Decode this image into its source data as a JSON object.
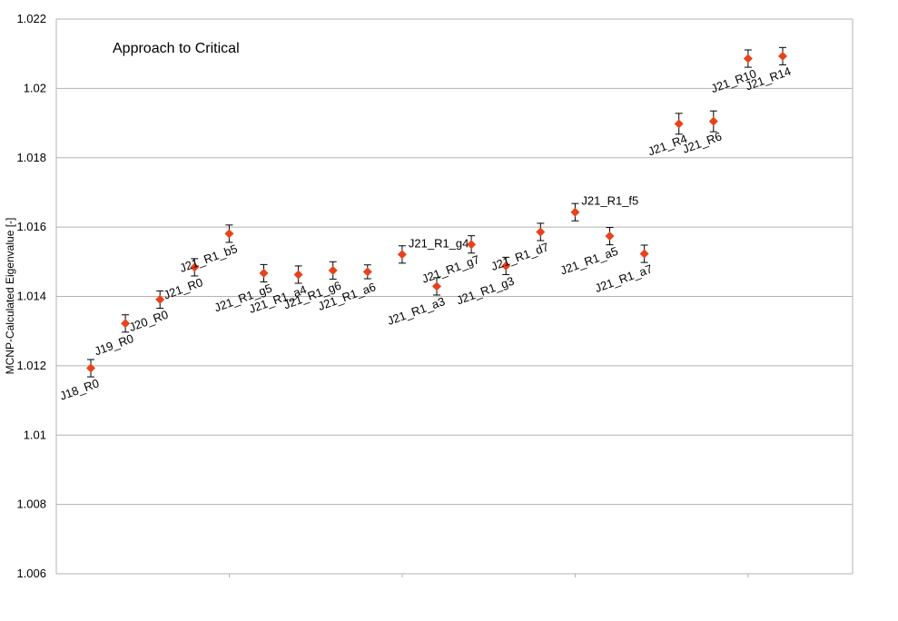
{
  "chart_data": {
    "type": "scatter",
    "title": "Approach to Critical",
    "ylabel": "MCNP-Calculated Eigenvalue [-]",
    "xlabel": "",
    "ylim": [
      1.006,
      1.022
    ],
    "yticks": [
      "1.006",
      "1.008",
      "1.01",
      "1.012",
      "1.014",
      "1.016",
      "1.018",
      "1.02",
      "1.022"
    ],
    "grid": true,
    "legend": "none",
    "marker_color": "#e8421c",
    "error_bar_color": "#000000",
    "points": [
      {
        "label": "J18_R0",
        "x": 1,
        "y": 1.01193,
        "err": 0.00025,
        "label_style": "rotated"
      },
      {
        "label": "J19_R0",
        "x": 2,
        "y": 1.01322,
        "err": 0.00025,
        "label_style": "rotated"
      },
      {
        "label": "J20_R0",
        "x": 3,
        "y": 1.01391,
        "err": 0.00025,
        "label_style": "rotated"
      },
      {
        "label": "J21_R0",
        "x": 4,
        "y": 1.01484,
        "err": 0.00025,
        "label_style": "rotated"
      },
      {
        "label": "J21_R1_b5",
        "x": 5,
        "y": 1.01581,
        "err": 0.00025,
        "label_style": "rotated"
      },
      {
        "label": "J21_R1_g5",
        "x": 6,
        "y": 1.01467,
        "err": 0.00025,
        "label_style": "rotated"
      },
      {
        "label": "J21_R1_a4",
        "x": 7,
        "y": 1.01463,
        "err": 0.00025,
        "label_style": "rotated"
      },
      {
        "label": "J21_R1_g6",
        "x": 8,
        "y": 1.01475,
        "err": 0.00025,
        "label_style": "rotated"
      },
      {
        "label": "J21_R1_a6",
        "x": 9,
        "y": 1.01471,
        "err": 0.0002,
        "label_style": "rotated"
      },
      {
        "label": "J21_R1_g4",
        "x": 10,
        "y": 1.01521,
        "err": 0.00025,
        "label_style": "horizontal"
      },
      {
        "label": "J21_R1_a3",
        "x": 11,
        "y": 1.01429,
        "err": 0.00025,
        "label_style": "rotated"
      },
      {
        "label": "J21_R1_g7",
        "x": 12,
        "y": 1.0155,
        "err": 0.00025,
        "label_style": "rotated"
      },
      {
        "label": "J21_R1_g3",
        "x": 13,
        "y": 1.01488,
        "err": 0.00025,
        "label_style": "rotated"
      },
      {
        "label": "J21_R1_d7",
        "x": 14,
        "y": 1.01586,
        "err": 0.00025,
        "label_style": "rotated"
      },
      {
        "label": "J21_R1_f5",
        "x": 15,
        "y": 1.01643,
        "err": 0.00025,
        "label_style": "horizontal"
      },
      {
        "label": "J21_R1_a5",
        "x": 16,
        "y": 1.01574,
        "err": 0.00025,
        "label_style": "rotated"
      },
      {
        "label": "J21_R1_a7",
        "x": 17,
        "y": 1.01523,
        "err": 0.00025,
        "label_style": "rotated"
      },
      {
        "label": "J21_R4",
        "x": 18,
        "y": 1.01898,
        "err": 0.0003,
        "label_style": "rotated"
      },
      {
        "label": "J21_R6",
        "x": 19,
        "y": 1.01905,
        "err": 0.0003,
        "label_style": "rotated"
      },
      {
        "label": "J21_R10",
        "x": 20,
        "y": 1.02086,
        "err": 0.00025,
        "label_style": "rotated"
      },
      {
        "label": "J21_R14",
        "x": 21,
        "y": 1.02093,
        "err": 0.00025,
        "label_style": "rotated"
      }
    ]
  }
}
